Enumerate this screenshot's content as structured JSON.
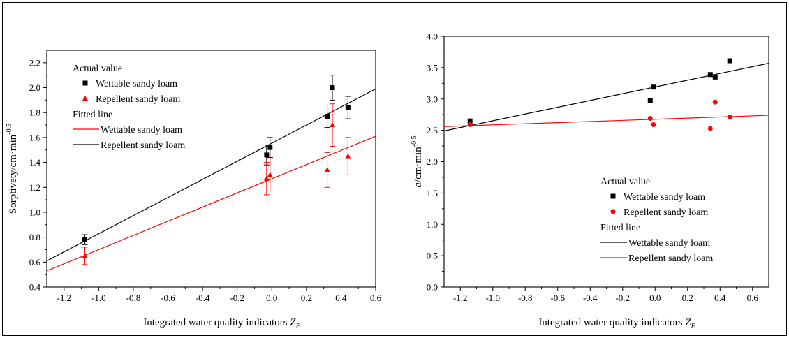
{
  "chart_data": [
    {
      "type": "scatter",
      "xlabel": "Integrated water quality indicators",
      "xlabel_symbol": "Z",
      "xlabel_subscript": "F",
      "ylabel": "Sorptivety/cm·min",
      "ylabel_exponent": "-0.5",
      "xlim": [
        -1.3,
        0.6
      ],
      "ylim": [
        0.4,
        2.3
      ],
      "xticks": [
        -1.2,
        -1.0,
        -0.8,
        -0.6,
        -0.4,
        -0.2,
        0.0,
        0.2,
        0.4,
        0.6
      ],
      "xtick_labels": [
        "-1.2",
        "-1.0",
        "-0.8",
        "-0.6",
        "-0.4",
        "-0.2",
        "0.0",
        "0.2",
        "0.4",
        "0.6"
      ],
      "yticks": [
        0.4,
        0.6,
        0.8,
        1.0,
        1.2,
        1.4,
        1.6,
        1.8,
        2.0,
        2.2
      ],
      "ytick_labels": [
        "0.4",
        "0.6",
        "0.8",
        "1.0",
        "1.2",
        "1.4",
        "1.6",
        "1.8",
        "2.0",
        "2.2"
      ],
      "legend_placement": "top-left",
      "legend": {
        "title1": "Actual value",
        "points": [
          {
            "label": "Wettable sandy loam",
            "marker": "square",
            "color": "#000000"
          },
          {
            "label": "Repellent sandy loam",
            "marker": "triangle",
            "color": "#ff0000"
          }
        ],
        "title2": "Fitted line",
        "lines": [
          {
            "label": "Wettable sandy loam",
            "color": "#ff0000"
          },
          {
            "label": "Repellent sandy loam",
            "color": "#000000"
          }
        ]
      },
      "series": [
        {
          "name": "Wettable sandy loam",
          "marker": "square",
          "color": "#000000",
          "points": [
            {
              "x": -1.08,
              "y": 0.78,
              "err": 0.04
            },
            {
              "x": -0.03,
              "y": 1.46,
              "err": 0.08
            },
            {
              "x": -0.01,
              "y": 1.52,
              "err": 0.08
            },
            {
              "x": 0.32,
              "y": 1.77,
              "err": 0.09
            },
            {
              "x": 0.35,
              "y": 2.0,
              "err": 0.1
            },
            {
              "x": 0.44,
              "y": 1.84,
              "err": 0.09
            }
          ]
        },
        {
          "name": "Repellent sandy loam",
          "marker": "triangle",
          "color": "#ff0000",
          "points": [
            {
              "x": -1.08,
              "y": 0.65,
              "err": 0.07
            },
            {
              "x": -0.03,
              "y": 1.27,
              "err": 0.13
            },
            {
              "x": -0.01,
              "y": 1.3,
              "err": 0.13
            },
            {
              "x": 0.32,
              "y": 1.34,
              "err": 0.14
            },
            {
              "x": 0.35,
              "y": 1.7,
              "err": 0.17
            },
            {
              "x": 0.44,
              "y": 1.45,
              "err": 0.15
            }
          ]
        }
      ],
      "fitted_lines": [
        {
          "name": "black fit",
          "color": "#000000",
          "x": [
            -1.3,
            0.6
          ],
          "y": [
            0.61,
            1.99
          ]
        },
        {
          "name": "red fit",
          "color": "#ff0000",
          "x": [
            -1.3,
            0.6
          ],
          "y": [
            0.53,
            1.61
          ]
        }
      ]
    },
    {
      "type": "scatter",
      "xlabel": "Integrated water quality indicators",
      "xlabel_symbol": "Z",
      "xlabel_subscript": "F",
      "ylabel_symbol": "a",
      "ylabel": "/cm·min",
      "ylabel_exponent": "-0.5",
      "xlim": [
        -1.3,
        0.7
      ],
      "ylim": [
        0.0,
        4.0
      ],
      "xticks": [
        -1.2,
        -1.0,
        -0.8,
        -0.6,
        -0.4,
        -0.2,
        0.0,
        0.2,
        0.4,
        0.6
      ],
      "xtick_labels": [
        "-1.2",
        "-1.0",
        "-0.8",
        "-0.6",
        "-0.4",
        "-0.2",
        "0.0",
        "0.2",
        "0.4",
        "0.6"
      ],
      "yticks": [
        0.0,
        0.5,
        1.0,
        1.5,
        2.0,
        2.5,
        3.0,
        3.5,
        4.0
      ],
      "ytick_labels": [
        "0.0",
        "0.5",
        "1.0",
        "1.5",
        "2.0",
        "2.5",
        "3.0",
        "3.5",
        "4.0"
      ],
      "legend_placement": "bottom-right",
      "legend": {
        "title1": "Actual value",
        "points": [
          {
            "label": "Wettable sandy loam",
            "marker": "square",
            "color": "#000000"
          },
          {
            "label": "Repellent sandy loam",
            "marker": "circle",
            "color": "#ff0000"
          }
        ],
        "title2": "Fitted line",
        "lines": [
          {
            "label": "Wettable sandy loam",
            "color": "#000000"
          },
          {
            "label": "Repellent sandy loam",
            "color": "#ff0000"
          }
        ]
      },
      "series": [
        {
          "name": "Wettable sandy loam",
          "marker": "square",
          "color": "#000000",
          "points": [
            {
              "x": -1.14,
              "y": 2.65
            },
            {
              "x": -0.03,
              "y": 2.98
            },
            {
              "x": -0.01,
              "y": 3.19
            },
            {
              "x": 0.34,
              "y": 3.39
            },
            {
              "x": 0.37,
              "y": 3.35
            },
            {
              "x": 0.46,
              "y": 3.61
            }
          ]
        },
        {
          "name": "Repellent sandy loam",
          "marker": "circle",
          "color": "#ff0000",
          "points": [
            {
              "x": -1.14,
              "y": 2.59
            },
            {
              "x": -0.03,
              "y": 2.69
            },
            {
              "x": -0.01,
              "y": 2.59
            },
            {
              "x": 0.34,
              "y": 2.53
            },
            {
              "x": 0.37,
              "y": 2.95
            },
            {
              "x": 0.46,
              "y": 2.71
            }
          ]
        }
      ],
      "fitted_lines": [
        {
          "name": "Wettable sandy loam",
          "color": "#000000",
          "x": [
            -1.3,
            0.7
          ],
          "y": [
            2.49,
            3.57
          ]
        },
        {
          "name": "Repellent sandy loam",
          "color": "#ff0000",
          "x": [
            -1.3,
            0.7
          ],
          "y": [
            2.56,
            2.74
          ]
        }
      ]
    }
  ]
}
